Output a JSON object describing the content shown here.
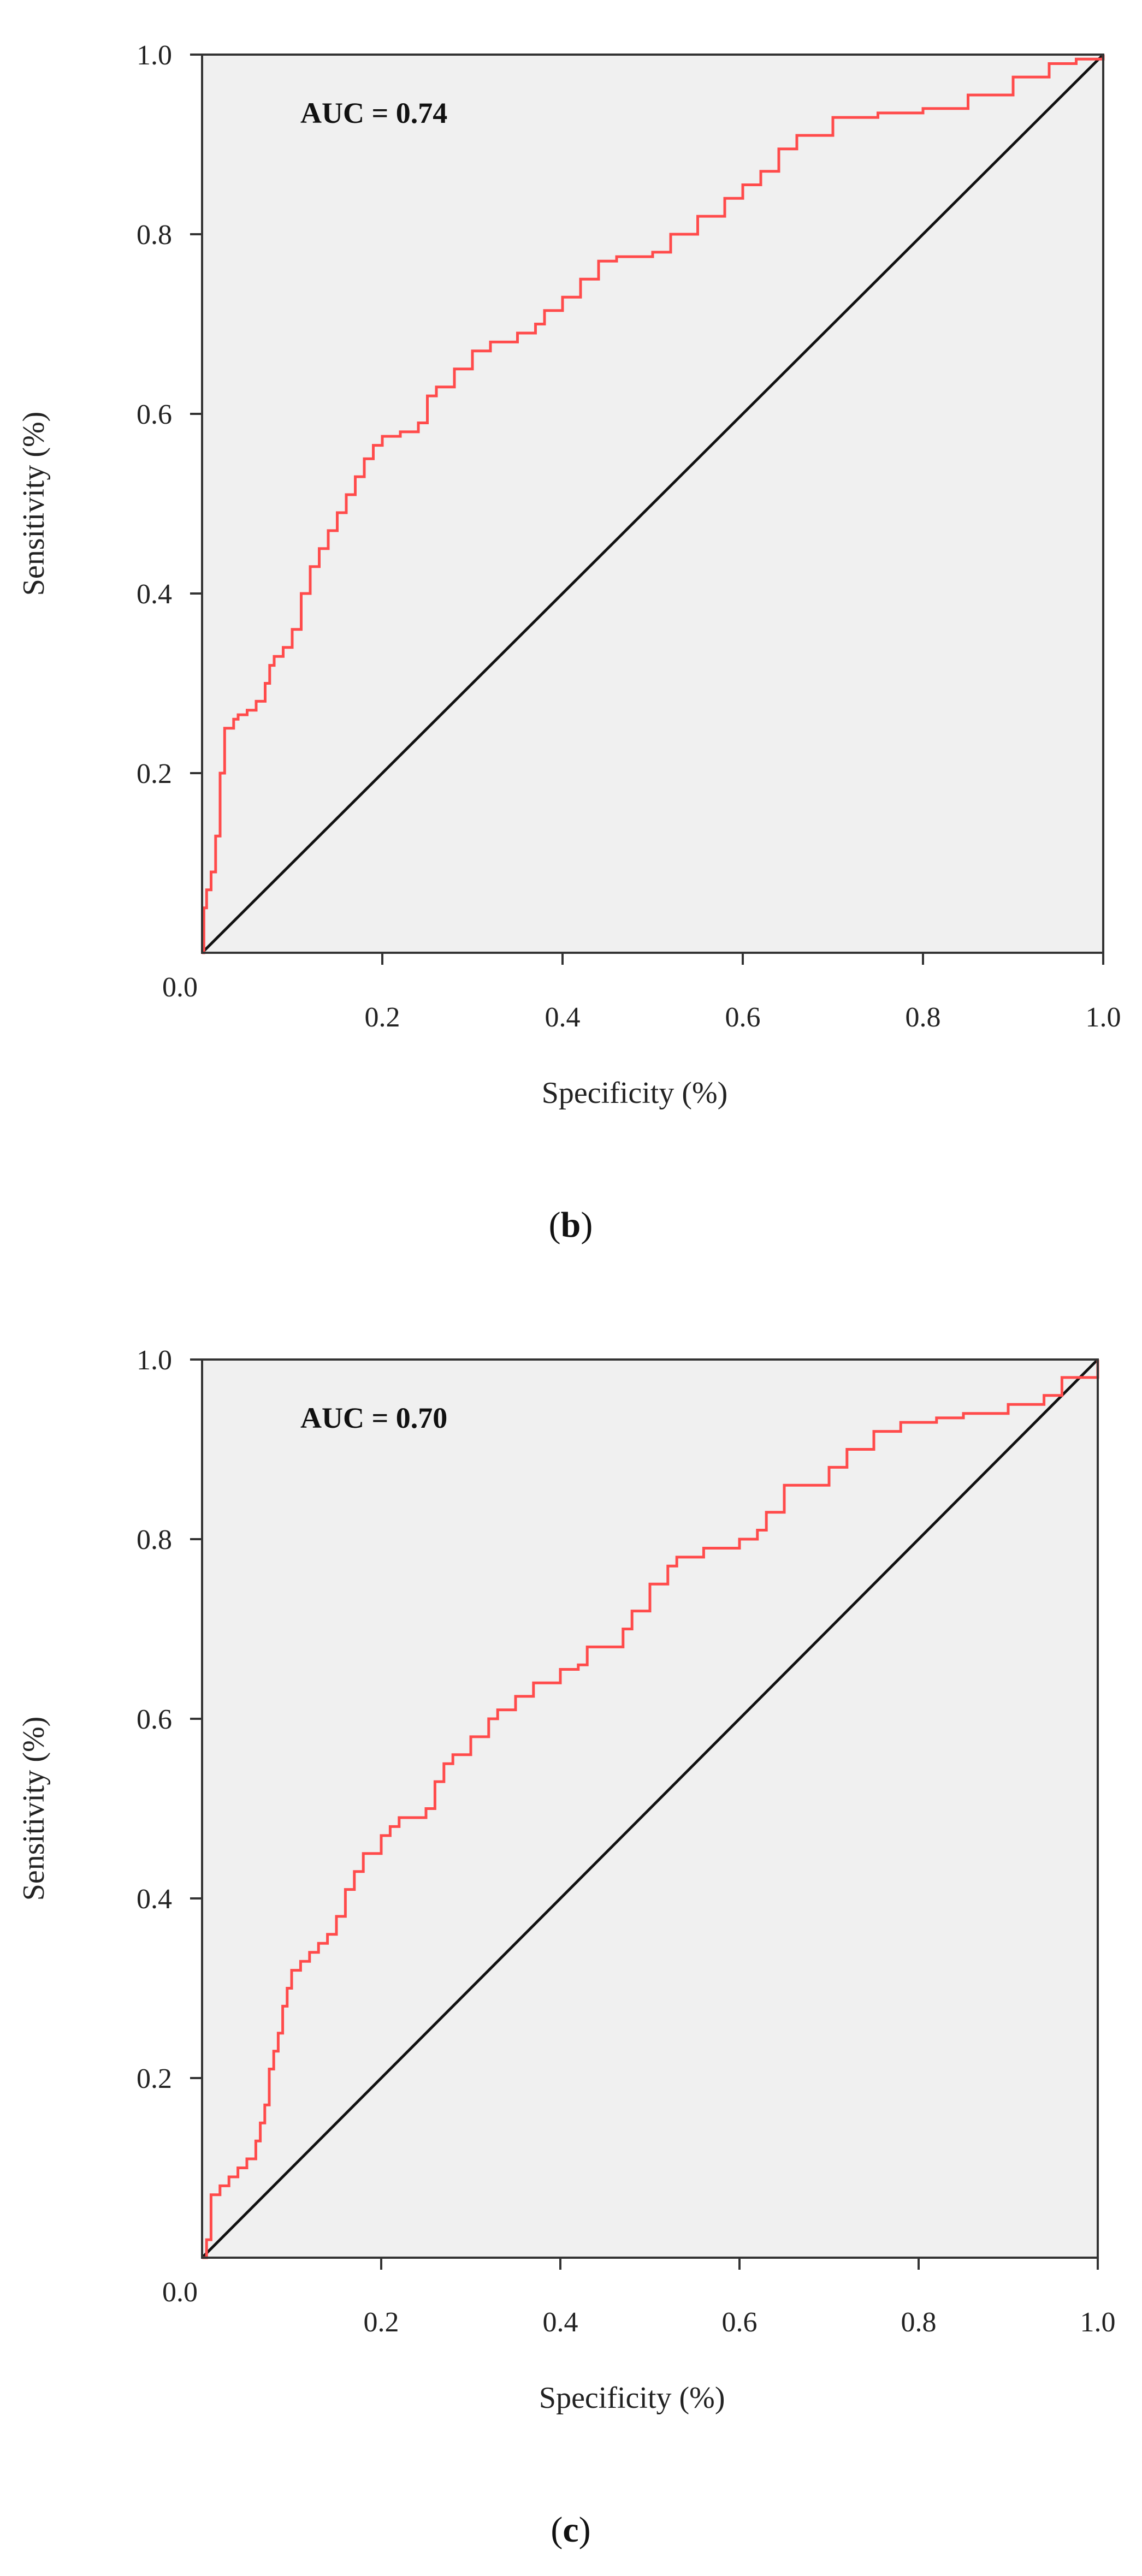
{
  "chart_data": [
    {
      "type": "line",
      "panel": "(b)",
      "panel_letter": "b",
      "annotation": "AUC = 0.74",
      "xlabel": "Specificity (%)",
      "ylabel": "Sensitivity (%)",
      "xlim": [
        0,
        1
      ],
      "ylim": [
        0,
        1
      ],
      "x_ticks": [
        0.2,
        0.4,
        0.6,
        0.8,
        1.0
      ],
      "x_tick_labels": [
        "0.2",
        "0.4",
        "0.6",
        "0.8",
        "1.0"
      ],
      "y_ticks": [
        0.2,
        0.4,
        0.6,
        0.8,
        1.0
      ],
      "y_tick_labels": [
        "0.2",
        "0.4",
        "0.6",
        "0.8",
        "1.0"
      ],
      "origin_label": "0.0",
      "grid": false,
      "colors": {
        "roc": "#ff4b4b",
        "reference": "#111111",
        "plot_bg": "#f0f0f0"
      },
      "series": [
        {
          "name": "ROC",
          "x": [
            0,
            0.002,
            0.005,
            0.01,
            0.015,
            0.02,
            0.025,
            0.03,
            0.035,
            0.04,
            0.05,
            0.06,
            0.07,
            0.075,
            0.08,
            0.09,
            0.1,
            0.11,
            0.12,
            0.13,
            0.14,
            0.15,
            0.16,
            0.17,
            0.18,
            0.19,
            0.2,
            0.22,
            0.24,
            0.25,
            0.26,
            0.28,
            0.3,
            0.32,
            0.35,
            0.37,
            0.38,
            0.4,
            0.42,
            0.44,
            0.46,
            0.5,
            0.52,
            0.55,
            0.58,
            0.6,
            0.62,
            0.64,
            0.66,
            0.7,
            0.75,
            0.8,
            0.85,
            0.9,
            0.94,
            0.97,
            1.0
          ],
          "y": [
            0,
            0.05,
            0.07,
            0.09,
            0.13,
            0.2,
            0.25,
            0.25,
            0.26,
            0.265,
            0.27,
            0.28,
            0.3,
            0.32,
            0.33,
            0.34,
            0.36,
            0.4,
            0.43,
            0.45,
            0.47,
            0.49,
            0.51,
            0.53,
            0.55,
            0.565,
            0.575,
            0.58,
            0.59,
            0.62,
            0.63,
            0.65,
            0.67,
            0.68,
            0.69,
            0.7,
            0.715,
            0.73,
            0.75,
            0.77,
            0.775,
            0.78,
            0.8,
            0.82,
            0.84,
            0.855,
            0.87,
            0.895,
            0.91,
            0.93,
            0.935,
            0.94,
            0.955,
            0.975,
            0.99,
            0.995,
            1.0
          ]
        },
        {
          "name": "Reference",
          "x": [
            0,
            1
          ],
          "y": [
            0,
            1
          ]
        }
      ]
    },
    {
      "type": "line",
      "panel": "(c)",
      "panel_letter": "c",
      "annotation": "AUC = 0.70",
      "xlabel": "Specificity (%)",
      "ylabel": "Sensitivity (%)",
      "xlim": [
        0,
        1
      ],
      "ylim": [
        0,
        1
      ],
      "x_ticks": [
        0.2,
        0.4,
        0.6,
        0.8,
        1.0
      ],
      "x_tick_labels": [
        "0.2",
        "0.4",
        "0.6",
        "0.8",
        "1.0"
      ],
      "y_ticks": [
        0.2,
        0.4,
        0.6,
        0.8,
        1.0
      ],
      "y_tick_labels": [
        "0.2",
        "0.4",
        "0.6",
        "0.8",
        "1.0"
      ],
      "origin_label": "0.0",
      "grid": false,
      "colors": {
        "roc": "#ff4b4b",
        "reference": "#111111",
        "plot_bg": "#f0f0f0"
      },
      "series": [
        {
          "name": "ROC",
          "x": [
            0,
            0.005,
            0.01,
            0.02,
            0.03,
            0.04,
            0.05,
            0.06,
            0.065,
            0.07,
            0.075,
            0.08,
            0.085,
            0.09,
            0.095,
            0.1,
            0.11,
            0.12,
            0.13,
            0.14,
            0.15,
            0.16,
            0.17,
            0.18,
            0.2,
            0.21,
            0.22,
            0.25,
            0.26,
            0.27,
            0.28,
            0.3,
            0.32,
            0.33,
            0.35,
            0.37,
            0.4,
            0.42,
            0.43,
            0.47,
            0.48,
            0.5,
            0.52,
            0.53,
            0.56,
            0.6,
            0.62,
            0.63,
            0.65,
            0.7,
            0.72,
            0.75,
            0.78,
            0.82,
            0.85,
            0.9,
            0.94,
            0.96,
            1.0
          ],
          "y": [
            0,
            0.02,
            0.07,
            0.08,
            0.09,
            0.1,
            0.11,
            0.13,
            0.15,
            0.17,
            0.21,
            0.23,
            0.25,
            0.28,
            0.3,
            0.32,
            0.33,
            0.34,
            0.35,
            0.36,
            0.38,
            0.41,
            0.43,
            0.45,
            0.47,
            0.48,
            0.49,
            0.5,
            0.53,
            0.55,
            0.56,
            0.58,
            0.6,
            0.61,
            0.625,
            0.64,
            0.655,
            0.66,
            0.68,
            0.7,
            0.72,
            0.75,
            0.77,
            0.78,
            0.79,
            0.8,
            0.81,
            0.83,
            0.86,
            0.88,
            0.9,
            0.92,
            0.93,
            0.935,
            0.94,
            0.95,
            0.96,
            0.98,
            1.0
          ]
        },
        {
          "name": "Reference",
          "x": [
            0,
            1
          ],
          "y": [
            0,
            1
          ]
        }
      ]
    }
  ]
}
